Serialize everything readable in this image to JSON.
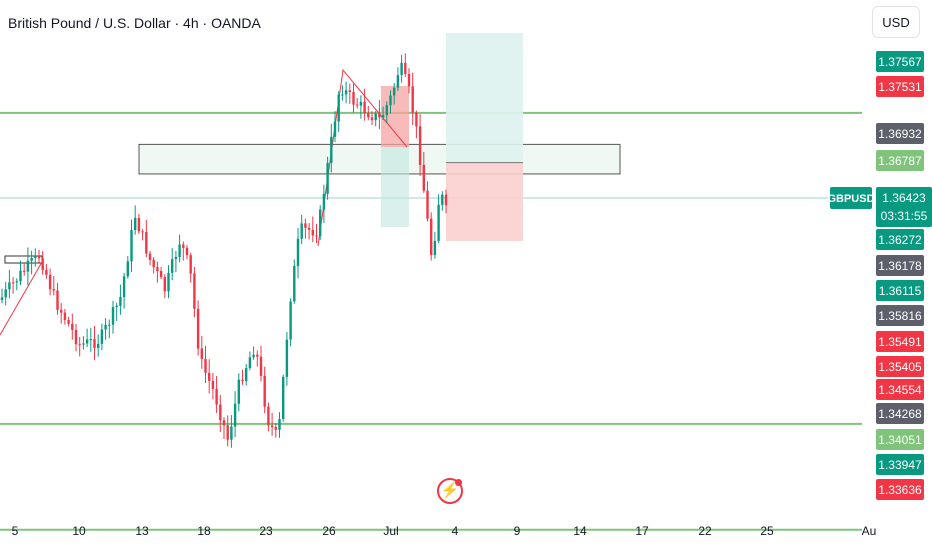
{
  "header": {
    "title": "British Pound / U.S. Dollar · 4h · OANDA",
    "currency": "USD"
  },
  "ticker": {
    "symbol": "GBPUSD",
    "price": "1.36423",
    "countdown": "03:31:55"
  },
  "event_marker": {
    "icon": "lightning-icon"
  },
  "colors": {
    "up": "#089981",
    "down": "#f23645",
    "level_line": "#7fc47a",
    "zone_fill": "#e8f5ec",
    "target_fill": "#def2ee",
    "stop_fill": "#fbcfcf"
  },
  "chart_data": {
    "type": "candlestick",
    "y_range": [
      1.3325,
      1.3778
    ],
    "x_ticks": [
      "5",
      "10",
      "13",
      "18",
      "23",
      "26",
      "Jul",
      "4",
      "9",
      "14",
      "17",
      "22",
      "25",
      "Au"
    ],
    "horizontal_levels": [
      1.36787,
      1.34051,
      1.3312
    ],
    "price_labels": [
      {
        "value": "1.37567",
        "kind": "up"
      },
      {
        "value": "1.37531",
        "kind": "down"
      },
      {
        "value": "1.36932",
        "kind": "gray"
      },
      {
        "value": "1.36787",
        "kind": "level"
      },
      {
        "value": "1.36272",
        "kind": "up"
      },
      {
        "value": "1.36178",
        "kind": "gray"
      },
      {
        "value": "1.36115",
        "kind": "up"
      },
      {
        "value": "1.35816",
        "kind": "gray"
      },
      {
        "value": "1.35491",
        "kind": "down"
      },
      {
        "value": "1.35405",
        "kind": "down"
      },
      {
        "value": "1.34554",
        "kind": "down"
      },
      {
        "value": "1.34268",
        "kind": "gray"
      },
      {
        "value": "1.34051",
        "kind": "level"
      },
      {
        "value": "1.33947",
        "kind": "up"
      },
      {
        "value": "1.33636",
        "kind": "down"
      }
    ],
    "zone": {
      "top": 1.3651,
      "bottom": 1.3625
    },
    "position": {
      "entry": 1.3635,
      "target": 1.3749,
      "stop": 1.3566
    }
  }
}
